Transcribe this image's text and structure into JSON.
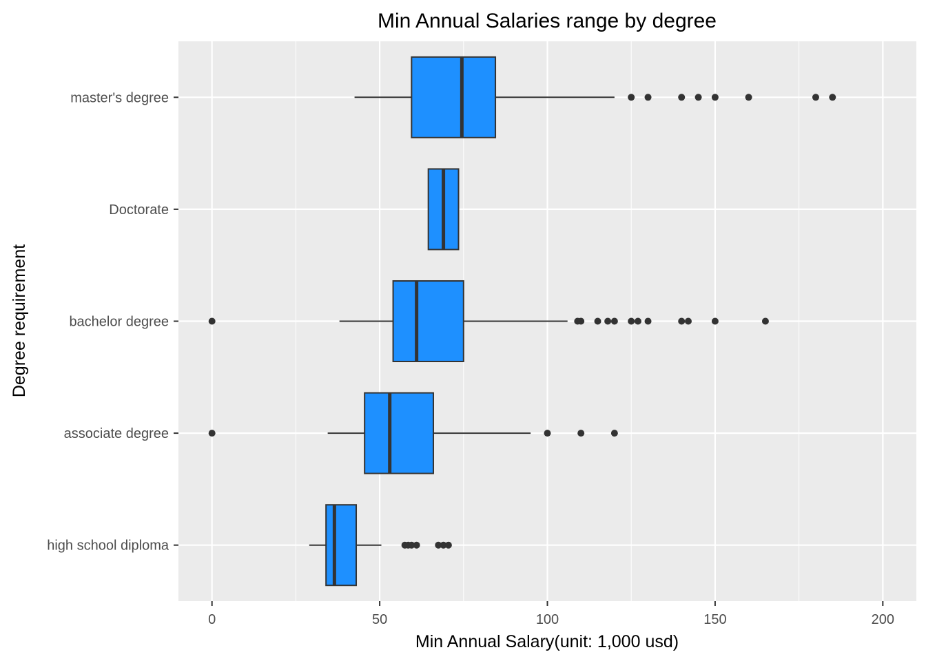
{
  "chart_data": {
    "type": "boxplot",
    "orientation": "horizontal",
    "title": "Min Annual Salaries range by degree",
    "xlabel": "Min Annual Salary(unit: 1,000 usd)",
    "ylabel": "Degree requirement",
    "xlim": [
      -10,
      210
    ],
    "x_ticks": [
      0,
      50,
      100,
      150,
      200
    ],
    "x_tick_labels": [
      "0",
      "50",
      "100",
      "150",
      "200"
    ],
    "grid": true,
    "fill_color": "#1E90FF",
    "panel_color": "#EBEBEB",
    "categories": [
      "master's degree",
      "Doctorate",
      "bachelor degree",
      "associate degree",
      "high school diploma"
    ],
    "boxes": [
      {
        "category": "master's degree",
        "whisker_low": 42.5,
        "q1": 59.5,
        "median": 74.5,
        "q3": 84.5,
        "whisker_high": 120,
        "outliers": [
          125,
          130,
          140,
          145,
          150,
          160,
          180,
          185
        ]
      },
      {
        "category": "Doctorate",
        "whisker_low": 64.5,
        "q1": 64.5,
        "median": 69,
        "q3": 73.5,
        "whisker_high": 73.5,
        "outliers": []
      },
      {
        "category": "bachelor degree",
        "whisker_low": 38,
        "q1": 54,
        "median": 61,
        "q3": 75,
        "whisker_high": 106,
        "outliers": [
          0,
          109,
          110,
          115,
          118,
          120,
          125,
          127,
          130,
          140,
          142,
          150,
          165
        ]
      },
      {
        "category": "associate degree",
        "whisker_low": 34.5,
        "q1": 45.5,
        "median": 53,
        "q3": 66,
        "whisker_high": 95,
        "outliers": [
          0,
          100,
          110,
          120
        ]
      },
      {
        "category": "high school diploma",
        "whisker_low": 29,
        "q1": 34,
        "median": 36.5,
        "q3": 43,
        "whisker_high": 50.5,
        "outliers": [
          57.5,
          58.5,
          59.5,
          61,
          67.5,
          69,
          70.5
        ]
      }
    ]
  }
}
